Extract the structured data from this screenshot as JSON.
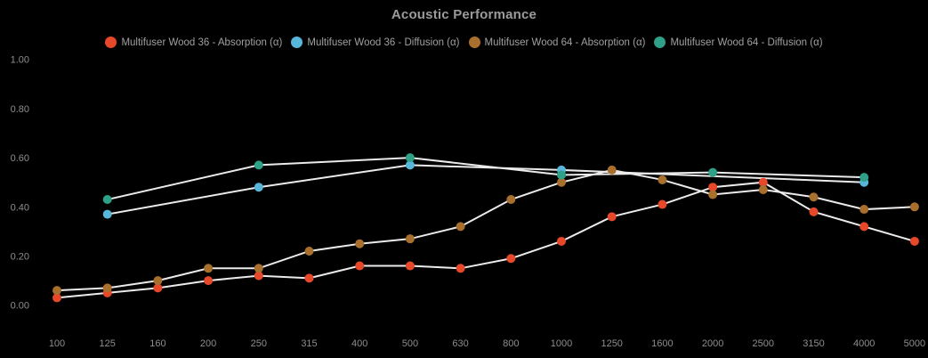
{
  "chart_data": {
    "type": "line",
    "title": "Acoustic Performance",
    "xlabel": "",
    "ylabel": "",
    "grid": false,
    "legend_position": "top",
    "background_color": "#000000",
    "line_color": "#ebebeb",
    "title_color": "#9b9b9b",
    "tick_color": "#8e8e8e",
    "ylim": [
      0,
      1
    ],
    "y_ticks": [
      1.0,
      0.8,
      0.6,
      0.4,
      0.2,
      0.0
    ],
    "categories": [
      "100",
      "125",
      "160",
      "200",
      "250",
      "315",
      "400",
      "500",
      "630",
      "800",
      "1000",
      "1250",
      "1600",
      "2000",
      "2500",
      "3150",
      "4000",
      "5000"
    ],
    "series": [
      {
        "name": "Multifuser Wood 36 - Absorption (α)",
        "color": "#e8482a",
        "values": [
          0.03,
          0.05,
          0.07,
          0.1,
          0.12,
          0.11,
          0.16,
          0.16,
          0.15,
          0.19,
          0.26,
          0.36,
          0.41,
          0.48,
          0.5,
          0.38,
          0.32,
          0.26
        ]
      },
      {
        "name": "Multifuser Wood 36 - Diffusion (α)",
        "color": "#58b6db",
        "values": [
          null,
          0.37,
          null,
          null,
          0.48,
          null,
          null,
          0.57,
          null,
          null,
          0.55,
          null,
          null,
          null,
          null,
          null,
          0.5,
          null
        ]
      },
      {
        "name": "Multifuser Wood 64 - Absorption (α)",
        "color": "#a9702d",
        "values": [
          0.06,
          0.07,
          0.1,
          0.15,
          0.15,
          0.22,
          0.25,
          0.27,
          0.32,
          0.43,
          0.5,
          0.55,
          0.51,
          0.45,
          0.47,
          0.44,
          0.39,
          0.4
        ]
      },
      {
        "name": "Multifuser Wood 64 - Diffusion (α)",
        "color": "#2fa189",
        "values": [
          null,
          0.43,
          null,
          null,
          0.57,
          null,
          null,
          0.6,
          null,
          null,
          0.53,
          null,
          null,
          0.54,
          null,
          null,
          0.52,
          null
        ]
      }
    ]
  }
}
